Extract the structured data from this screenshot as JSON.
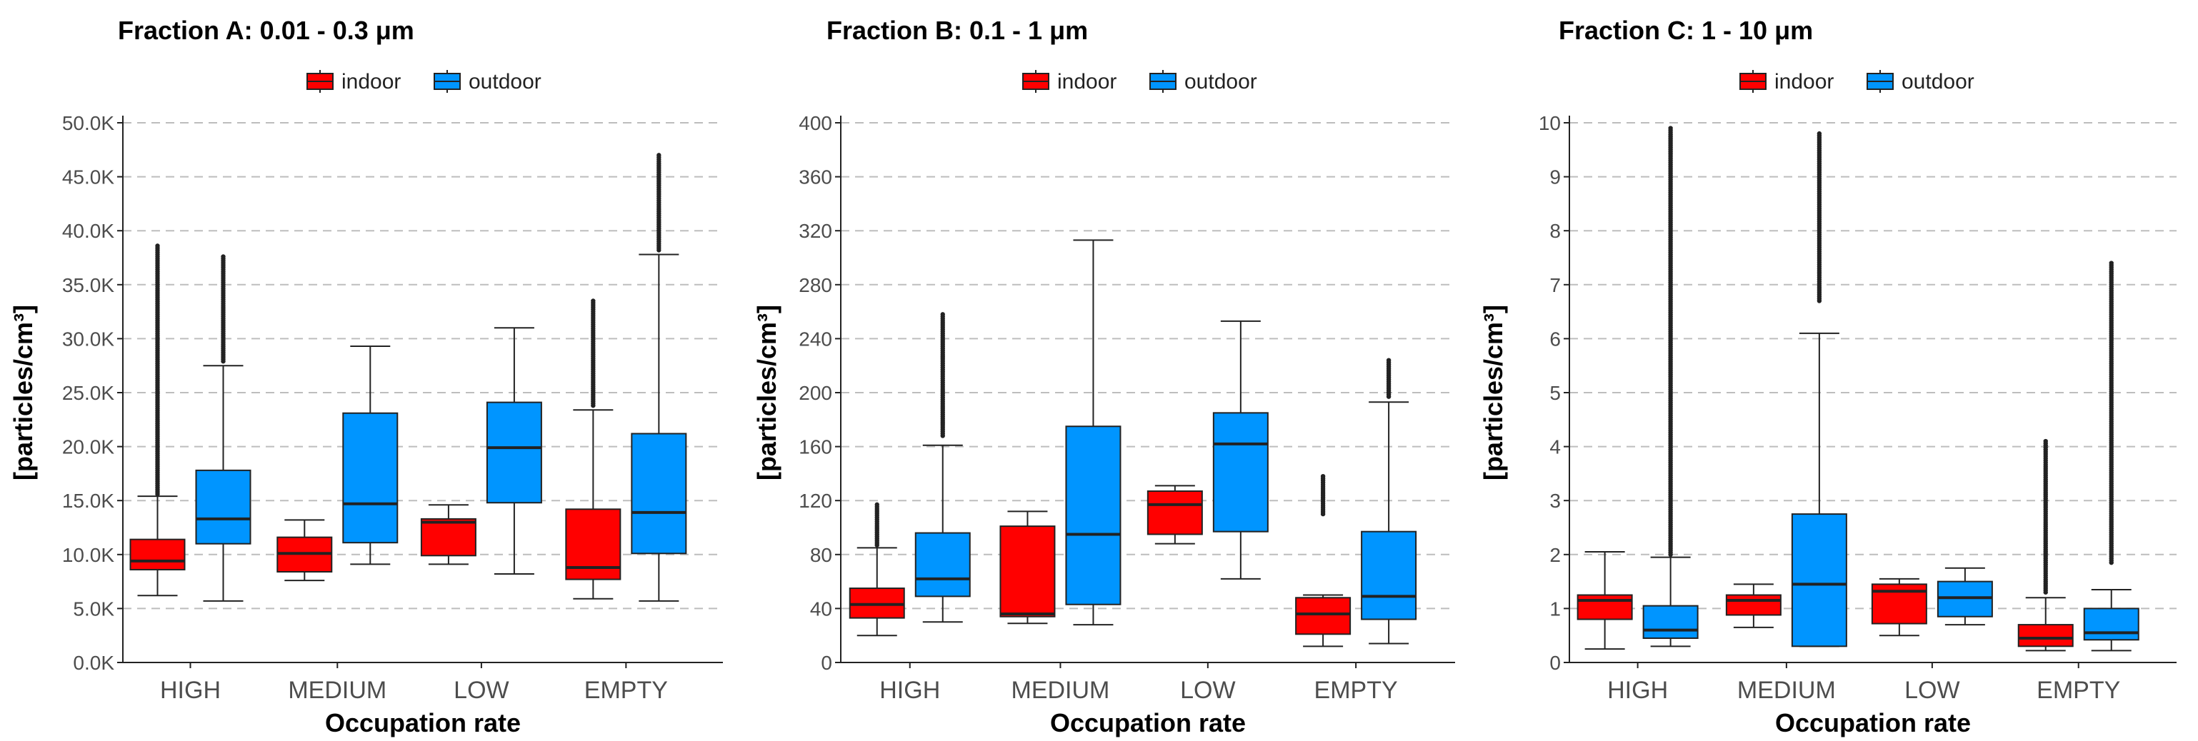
{
  "colors": {
    "indoor": "#FF0000",
    "outdoor": "#0095FF",
    "outlier": "#222222"
  },
  "chart_data": [
    {
      "type": "boxplot",
      "title": "Fraction A: 0.01 - 0.3 μm",
      "xlabel": "Occupation rate",
      "ylabel": "[particles/cm³]",
      "legend": [
        "indoor",
        "outdoor"
      ],
      "legend_position": "top",
      "categories": [
        "HIGH",
        "MEDIUM",
        "LOW",
        "EMPTY"
      ],
      "ylim": [
        0,
        50000
      ],
      "yticks": [
        0,
        5000,
        10000,
        15000,
        20000,
        25000,
        30000,
        35000,
        40000,
        45000,
        50000
      ],
      "ytick_labels": [
        "0.0K",
        "5.0K",
        "10.0K",
        "15.0K",
        "20.0K",
        "25.0K",
        "30.0K",
        "35.0K",
        "40.0K",
        "45.0K",
        "50.0K"
      ],
      "series": [
        {
          "name": "indoor",
          "boxes": [
            {
              "min": 6200,
              "q1": 8600,
              "median": 9400,
              "q3": 11400,
              "max": 15400,
              "outliers_from": 15600,
              "outliers_to": 38600
            },
            {
              "min": 7600,
              "q1": 8400,
              "median": 10100,
              "q3": 11600,
              "max": 13200,
              "outliers_from": null,
              "outliers_to": null
            },
            {
              "min": 9100,
              "q1": 9900,
              "median": 13000,
              "q3": 13300,
              "max": 14600,
              "outliers_from": null,
              "outliers_to": null
            },
            {
              "min": 5900,
              "q1": 7700,
              "median": 8800,
              "q3": 14200,
              "max": 23400,
              "outliers_from": 23800,
              "outliers_to": 33500
            }
          ]
        },
        {
          "name": "outdoor",
          "boxes": [
            {
              "min": 5700,
              "q1": 11000,
              "median": 13300,
              "q3": 17800,
              "max": 27500,
              "outliers_from": 27900,
              "outliers_to": 37600
            },
            {
              "min": 9100,
              "q1": 11100,
              "median": 14700,
              "q3": 23100,
              "max": 29300,
              "outliers_from": null,
              "outliers_to": null
            },
            {
              "min": 8200,
              "q1": 14800,
              "median": 19900,
              "q3": 24100,
              "max": 31000,
              "outliers_from": null,
              "outliers_to": null
            },
            {
              "min": 5700,
              "q1": 10100,
              "median": 13900,
              "q3": 21200,
              "max": 37800,
              "outliers_from": 38200,
              "outliers_to": 47000
            }
          ]
        }
      ]
    },
    {
      "type": "boxplot",
      "title": "Fraction B: 0.1 - 1 μm",
      "xlabel": "Occupation rate",
      "ylabel": "[particles/cm³]",
      "legend": [
        "indoor",
        "outdoor"
      ],
      "legend_position": "top",
      "categories": [
        "HIGH",
        "MEDIUM",
        "LOW",
        "EMPTY"
      ],
      "ylim": [
        0,
        400
      ],
      "yticks": [
        0,
        40,
        80,
        120,
        160,
        200,
        240,
        280,
        320,
        360,
        400
      ],
      "ytick_labels": [
        "0",
        "40",
        "80",
        "120",
        "160",
        "200",
        "240",
        "280",
        "320",
        "360",
        "400"
      ],
      "series": [
        {
          "name": "indoor",
          "boxes": [
            {
              "min": 20,
              "q1": 33,
              "median": 43,
              "q3": 55,
              "max": 85,
              "outliers_from": 87,
              "outliers_to": 117
            },
            {
              "min": 29,
              "q1": 34,
              "median": 36,
              "q3": 101,
              "max": 112,
              "outliers_from": null,
              "outliers_to": null
            },
            {
              "min": 88,
              "q1": 95,
              "median": 117,
              "q3": 127,
              "max": 131,
              "outliers_from": null,
              "outliers_to": null
            },
            {
              "min": 12,
              "q1": 21,
              "median": 36,
              "q3": 48,
              "max": 50,
              "outliers_from": 110,
              "outliers_to": 138
            }
          ]
        },
        {
          "name": "outdoor",
          "boxes": [
            {
              "min": 30,
              "q1": 49,
              "median": 62,
              "q3": 96,
              "max": 161,
              "outliers_from": 168,
              "outliers_to": 258
            },
            {
              "min": 28,
              "q1": 43,
              "median": 95,
              "q3": 175,
              "max": 313,
              "outliers_from": null,
              "outliers_to": null
            },
            {
              "min": 62,
              "q1": 97,
              "median": 162,
              "q3": 185,
              "max": 253,
              "outliers_from": null,
              "outliers_to": null
            },
            {
              "min": 14,
              "q1": 32,
              "median": 49,
              "q3": 97,
              "max": 193,
              "outliers_from": 197,
              "outliers_to": 224
            }
          ]
        }
      ]
    },
    {
      "type": "boxplot",
      "title": "Fraction C: 1 - 10 μm",
      "xlabel": "Occupation rate",
      "ylabel": "[particles/cm³]",
      "legend": [
        "indoor",
        "outdoor"
      ],
      "legend_position": "top",
      "categories": [
        "HIGH",
        "MEDIUM",
        "LOW",
        "EMPTY"
      ],
      "ylim": [
        0,
        10
      ],
      "yticks": [
        0,
        1,
        2,
        3,
        4,
        5,
        6,
        7,
        8,
        9,
        10
      ],
      "ytick_labels": [
        "0",
        "1",
        "2",
        "3",
        "4",
        "5",
        "6",
        "7",
        "8",
        "9",
        "10"
      ],
      "series": [
        {
          "name": "indoor",
          "boxes": [
            {
              "min": 0.25,
              "q1": 0.8,
              "median": 1.15,
              "q3": 1.25,
              "max": 2.05,
              "outliers_from": null,
              "outliers_to": null
            },
            {
              "min": 0.65,
              "q1": 0.88,
              "median": 1.15,
              "q3": 1.25,
              "max": 1.45,
              "outliers_from": null,
              "outliers_to": null
            },
            {
              "min": 0.5,
              "q1": 0.72,
              "median": 1.32,
              "q3": 1.45,
              "max": 1.55,
              "outliers_from": null,
              "outliers_to": null
            },
            {
              "min": 0.22,
              "q1": 0.3,
              "median": 0.45,
              "q3": 0.7,
              "max": 1.2,
              "outliers_from": 1.3,
              "outliers_to": 4.1
            }
          ]
        },
        {
          "name": "outdoor",
          "boxes": [
            {
              "min": 0.3,
              "q1": 0.45,
              "median": 0.6,
              "q3": 1.05,
              "max": 1.95,
              "outliers_from": 2.0,
              "outliers_to": 9.9
            },
            {
              "min": 0.3,
              "q1": 0.3,
              "median": 1.45,
              "q3": 2.75,
              "max": 6.1,
              "outliers_from": 6.7,
              "outliers_to": 9.8
            },
            {
              "min": 0.7,
              "q1": 0.85,
              "median": 1.2,
              "q3": 1.5,
              "max": 1.75,
              "outliers_from": null,
              "outliers_to": null
            },
            {
              "min": 0.22,
              "q1": 0.42,
              "median": 0.55,
              "q3": 1.0,
              "max": 1.35,
              "outliers_from": 1.85,
              "outliers_to": 7.4
            }
          ]
        }
      ]
    }
  ]
}
